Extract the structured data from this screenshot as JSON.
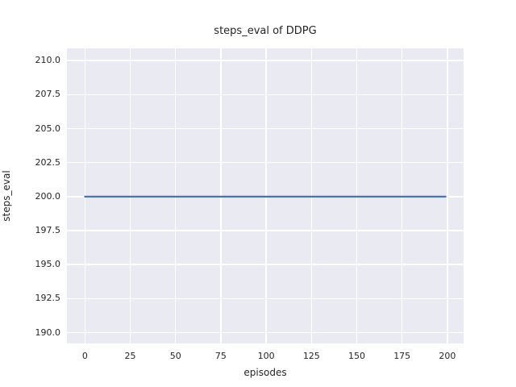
{
  "chart_data": {
    "type": "line",
    "title": "steps_eval of DDPG",
    "xlabel": "episodes",
    "ylabel": "steps_eval",
    "grid": true,
    "legend": null,
    "xlim": [
      -9.95,
      208.95
    ],
    "ylim": [
      189.2,
      210.9
    ],
    "x_ticks": [
      {
        "value": 0,
        "label": "0"
      },
      {
        "value": 25,
        "label": "25"
      },
      {
        "value": 50,
        "label": "50"
      },
      {
        "value": 75,
        "label": "75"
      },
      {
        "value": 100,
        "label": "100"
      },
      {
        "value": 125,
        "label": "125"
      },
      {
        "value": 150,
        "label": "150"
      },
      {
        "value": 175,
        "label": "175"
      },
      {
        "value": 200,
        "label": "200"
      }
    ],
    "y_ticks": [
      {
        "value": 190.0,
        "label": "190.0"
      },
      {
        "value": 192.5,
        "label": "192.5"
      },
      {
        "value": 195.0,
        "label": "195.0"
      },
      {
        "value": 197.5,
        "label": "197.5"
      },
      {
        "value": 200.0,
        "label": "200.0"
      },
      {
        "value": 202.5,
        "label": "202.5"
      },
      {
        "value": 205.0,
        "label": "205.0"
      },
      {
        "value": 207.5,
        "label": "207.5"
      },
      {
        "value": 210.0,
        "label": "210.0"
      }
    ],
    "series": [
      {
        "name": "steps_eval",
        "color": "#4c72b0",
        "line_width": 2.2,
        "x": [
          0,
          199
        ],
        "y": [
          200,
          200
        ]
      }
    ]
  },
  "style": {
    "figure_bg": "#ffffff",
    "axes_bg": "#eaeaf2",
    "grid_color": "#ffffff",
    "text_color": "#262626"
  }
}
